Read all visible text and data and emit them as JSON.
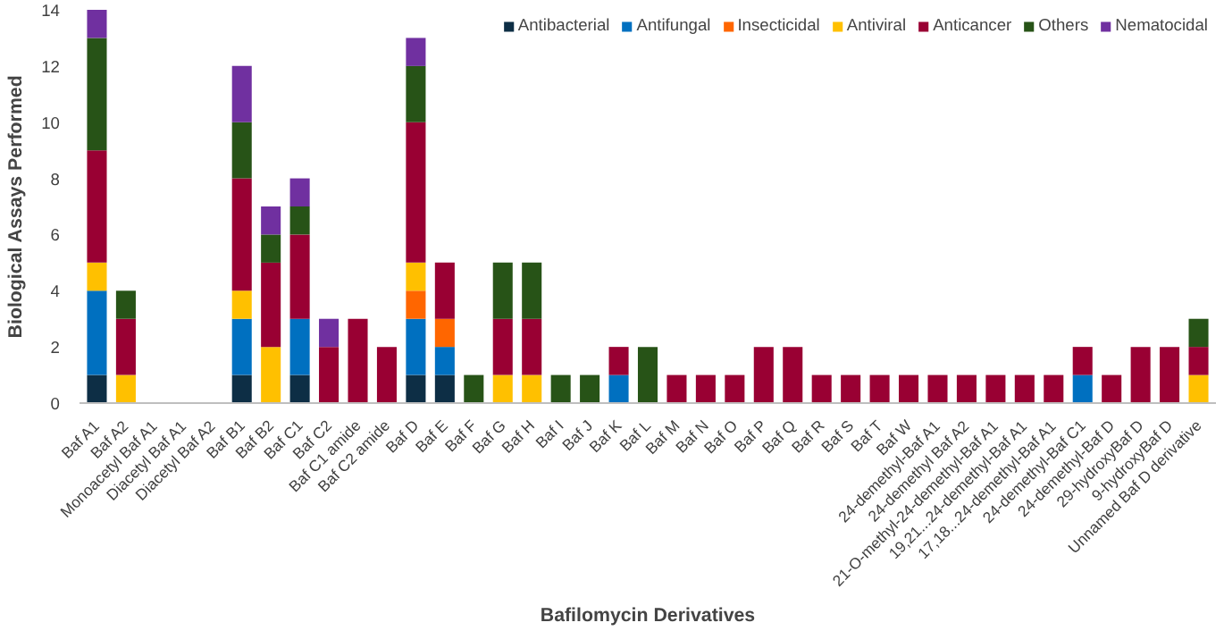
{
  "chart_data": {
    "type": "bar",
    "stacked": true,
    "xlabel": "Bafilomycin Derivatives",
    "ylabel": "Biological Assays Performed",
    "categories": [
      "Baf A1",
      "Baf A2",
      "Monoacetyl Baf A1",
      "Diacetyl Baf A1",
      "Diacetyl Baf A2",
      "Baf B1",
      "Baf B2",
      "Baf C1",
      "Baf C2",
      "Baf C1 amide",
      "Baf C2 amide",
      "Baf D",
      "Baf E",
      "Baf F",
      "Baf G",
      "Baf H",
      "Baf I",
      "Baf J",
      "Baf K",
      "Baf L",
      "Baf M",
      "Baf N",
      "Baf O",
      "Baf P",
      "Baf Q",
      "Baf R",
      "Baf S",
      "Baf T",
      "Baf W",
      "24-demethyl-Baf A1",
      "24-demethyl Baf A2",
      "21-O-methyl-24-demethyl-Baf A1",
      "19,21...24-demethyl-Baf A1",
      "17,18...24-demethyl-Baf A1",
      "24-demethyl-Baf C1",
      "24-demethyl-Baf D",
      "29-hydroxyBaf D",
      "9-hydroxyBaf D",
      "Unnamed Baf D derivative"
    ],
    "series": [
      {
        "name": "Antibacterial",
        "color": "#0d2e45",
        "values": [
          1,
          0,
          0,
          0,
          0,
          1,
          0,
          1,
          0,
          0,
          0,
          1,
          1,
          0,
          0,
          0,
          0,
          0,
          0,
          0,
          0,
          0,
          0,
          0,
          0,
          0,
          0,
          0,
          0,
          0,
          0,
          0,
          0,
          0,
          0,
          0,
          0,
          0,
          0
        ]
      },
      {
        "name": "Antifungal",
        "color": "#0070c0",
        "values": [
          3,
          0,
          0,
          0,
          0,
          2,
          0,
          2,
          0,
          0,
          0,
          2,
          1,
          0,
          0,
          0,
          0,
          0,
          1,
          0,
          0,
          0,
          0,
          0,
          0,
          0,
          0,
          0,
          0,
          0,
          0,
          0,
          0,
          0,
          1,
          0,
          0,
          0,
          0
        ]
      },
      {
        "name": "Insecticidal",
        "color": "#ff6600",
        "values": [
          0,
          0,
          0,
          0,
          0,
          0,
          0,
          0,
          0,
          0,
          0,
          1,
          1,
          0,
          0,
          0,
          0,
          0,
          0,
          0,
          0,
          0,
          0,
          0,
          0,
          0,
          0,
          0,
          0,
          0,
          0,
          0,
          0,
          0,
          0,
          0,
          0,
          0,
          0
        ]
      },
      {
        "name": "Antiviral",
        "color": "#ffc000",
        "values": [
          1,
          1,
          0,
          0,
          0,
          1,
          2,
          0,
          0,
          0,
          0,
          1,
          0,
          0,
          1,
          1,
          0,
          0,
          0,
          0,
          0,
          0,
          0,
          0,
          0,
          0,
          0,
          0,
          0,
          0,
          0,
          0,
          0,
          0,
          0,
          0,
          0,
          0,
          1
        ]
      },
      {
        "name": "Anticancer",
        "color": "#990033",
        "values": [
          4,
          2,
          0,
          0,
          0,
          4,
          3,
          3,
          2,
          3,
          2,
          5,
          2,
          0,
          2,
          2,
          0,
          0,
          1,
          0,
          1,
          1,
          1,
          2,
          2,
          1,
          1,
          1,
          1,
          1,
          1,
          1,
          1,
          1,
          1,
          1,
          2,
          2,
          1
        ]
      },
      {
        "name": "Others",
        "color": "#275317",
        "values": [
          4,
          1,
          0,
          0,
          0,
          2,
          1,
          1,
          0,
          0,
          0,
          2,
          0,
          1,
          2,
          2,
          1,
          1,
          0,
          2,
          0,
          0,
          0,
          0,
          0,
          0,
          0,
          0,
          0,
          0,
          0,
          0,
          0,
          0,
          0,
          0,
          0,
          0,
          1
        ]
      },
      {
        "name": "Nematocidal",
        "color": "#7030a0",
        "values": [
          1,
          0,
          0,
          0,
          0,
          2,
          1,
          1,
          1,
          0,
          0,
          1,
          0,
          0,
          0,
          0,
          0,
          0,
          0,
          0,
          0,
          0,
          0,
          0,
          0,
          0,
          0,
          0,
          0,
          0,
          0,
          0,
          0,
          0,
          0,
          0,
          0,
          0,
          0
        ]
      }
    ],
    "ylim": [
      0,
      14
    ],
    "yticks": [
      0,
      2,
      4,
      6,
      8,
      10,
      12,
      14
    ],
    "grid": false,
    "legend": "top right"
  }
}
